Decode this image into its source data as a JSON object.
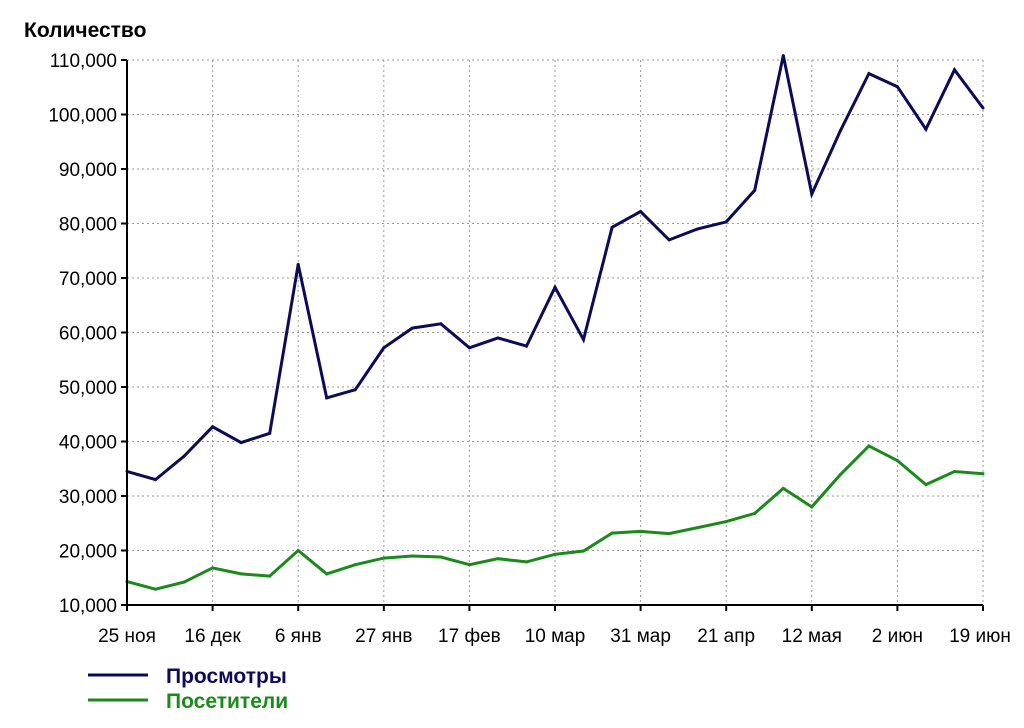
{
  "chart_data": {
    "type": "line",
    "title": "",
    "xlabel": "",
    "ylabel": "Количество",
    "ylim": [
      10000,
      110000
    ],
    "y_ticks": [
      10000,
      20000,
      30000,
      40000,
      50000,
      60000,
      70000,
      80000,
      90000,
      100000,
      110000
    ],
    "y_tick_labels": [
      "10,000",
      "20,000",
      "30,000",
      "40,000",
      "50,000",
      "60,000",
      "70,000",
      "80,000",
      "90,000",
      "100,000",
      "110,000"
    ],
    "x_ticks": [
      "25 ноя",
      "16 дек",
      "6 янв",
      "27 янв",
      "17 фев",
      "10 мар",
      "31 мар",
      "21 апр",
      "12 мая",
      "2 июн",
      "19 июн"
    ],
    "x_tick_week_index": [
      0,
      3,
      6,
      9,
      12,
      15,
      18,
      21,
      24,
      27,
      30
    ],
    "x_week_count": 30,
    "grid": true,
    "legend_position": "bottom-left",
    "series": [
      {
        "name": "Просмотры",
        "color": "#0b0b5a",
        "values": [
          34500,
          33000,
          37300,
          42700,
          39800,
          41500,
          72500,
          48000,
          49500,
          57200,
          60800,
          61600,
          57200,
          59000,
          57500,
          68300,
          58700,
          79300,
          82200,
          77000,
          79000,
          80300,
          86100,
          110800,
          85400,
          97000,
          107500,
          105100,
          97300,
          108200,
          101200
        ]
      },
      {
        "name": "Посетители",
        "color": "#1a8a1a",
        "values": [
          14300,
          12900,
          14200,
          16800,
          15700,
          15300,
          20000,
          15700,
          17400,
          18600,
          19000,
          18800,
          17400,
          18500,
          17900,
          19300,
          19900,
          23200,
          23500,
          23100,
          24200,
          25300,
          26800,
          31400,
          28000,
          33900,
          39200,
          36500,
          32100,
          34500,
          34100
        ]
      }
    ]
  }
}
